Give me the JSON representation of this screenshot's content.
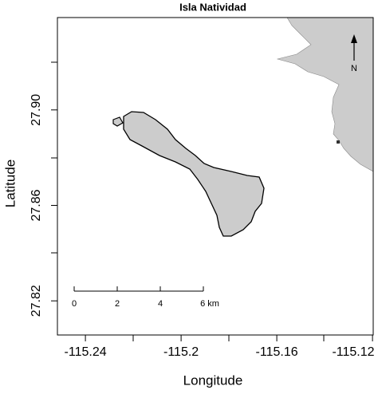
{
  "map_data": {
    "title": "Isla Natividad",
    "x_label": "Longitude",
    "y_label": "Latitude",
    "xlim": [
      -115.2517,
      -115.1197
    ],
    "ylim": [
      27.8057,
      27.9387
    ],
    "xticks": [
      -115.24,
      -115.2,
      -115.16,
      -115.12
    ],
    "yticks": [
      {
        "value": 27.82,
        "label": "27.82"
      },
      {
        "value": 27.86,
        "label": "27.86"
      },
      {
        "value": 27.9,
        "label": "27.90"
      }
    ],
    "scale_bar": [
      "0",
      "2",
      "4",
      "6 km"
    ],
    "north": "N"
  }
}
